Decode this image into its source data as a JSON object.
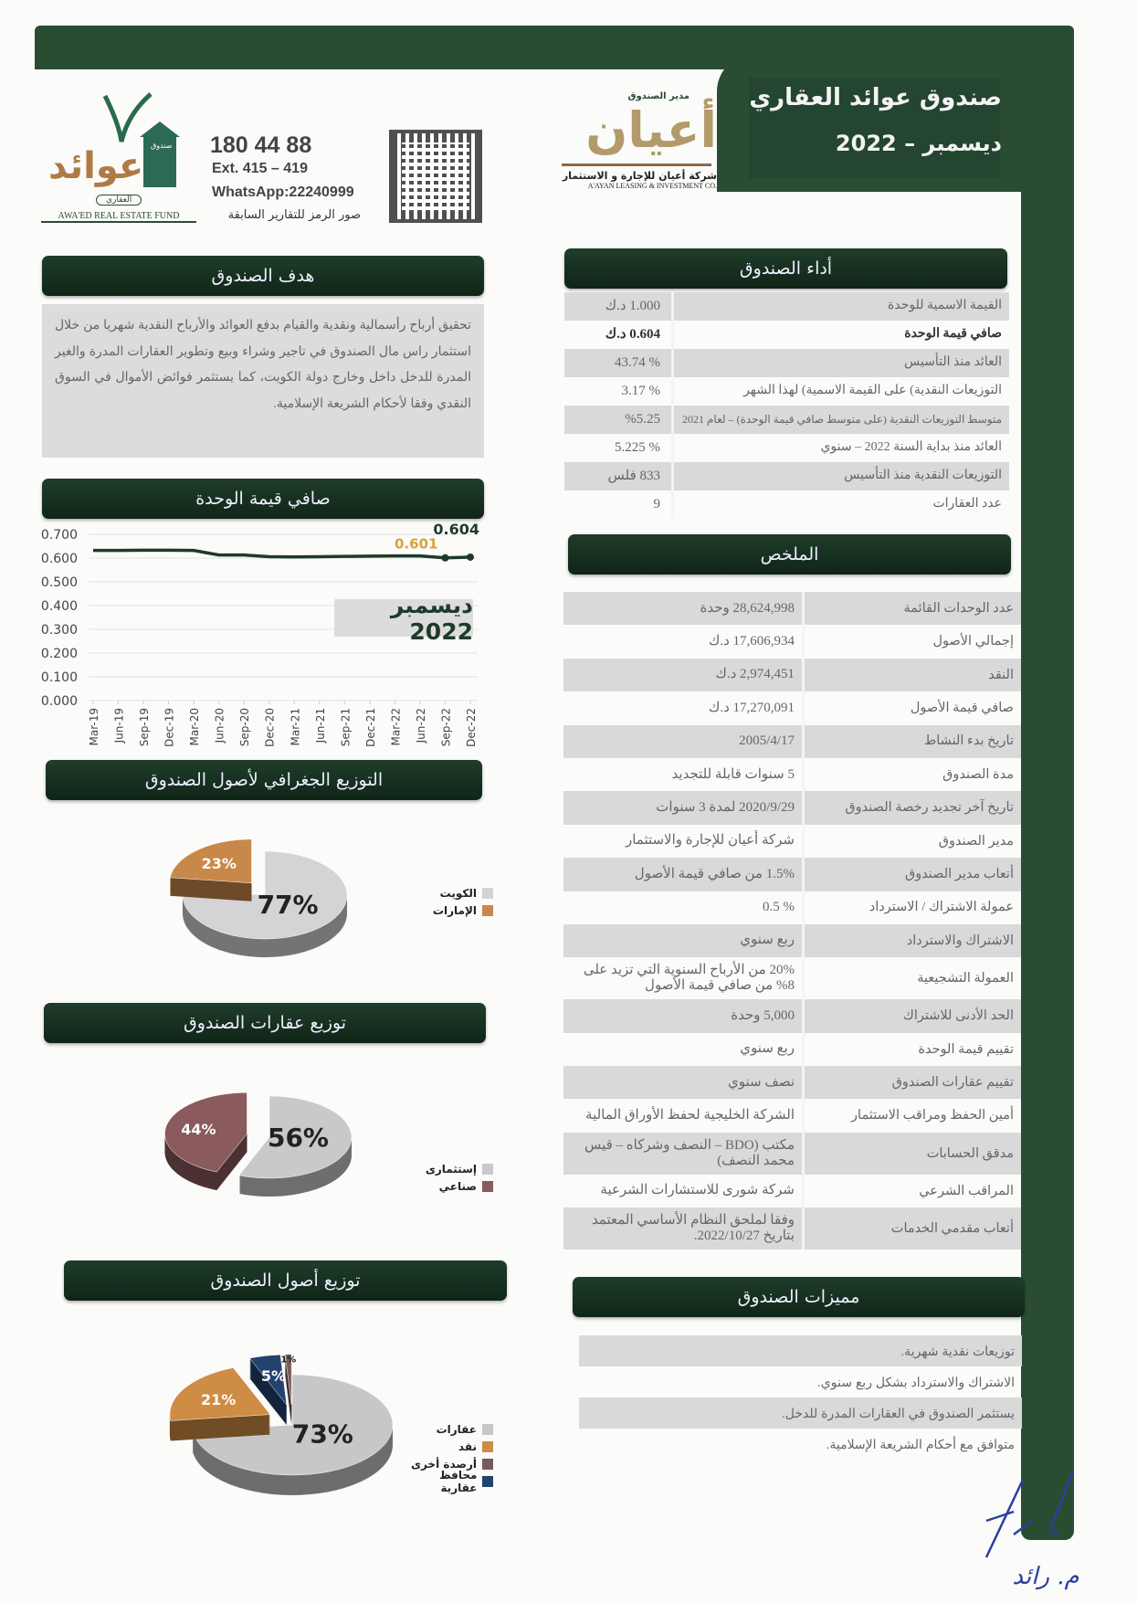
{
  "header": {
    "title": "صندوق عوائد العقاري",
    "period": "ديسمبر – 2022",
    "brand_green": "#2a4c33"
  },
  "manager_logo": {
    "caption": "مدير الصندوق",
    "name": "أعيان",
    "company_ar": "شركة أعيان للإجارة و الاستثمار",
    "company_en": "A'AYAN LEASING & INVESTMENT CO."
  },
  "fund_logo": {
    "name_ar": "عوائد",
    "sub_ar": "العقاري",
    "box_ar": "صندوق",
    "name_en": "AWA'ED REAL ESTATE FUND"
  },
  "contact": {
    "phone": "180 44 88",
    "ext": "Ext. 415 – 419",
    "whatsapp": "WhatsApp:22240999",
    "qr_caption": "صور الرمز للتقارير السابقة"
  },
  "objective": {
    "title": "هدف الصندوق",
    "text": "تحقيق أرباح رأسمالية ونقدية والقيام بدفع العوائد والأرباح النقدية شهريا من خلال استثمار راس مال الصندوق في تاجير وشراء وبيع وتطوير العقارات المدرة والغير المدرة للدخل داخل وخارج دولة الكويت، كما يستثمر فوائض الأموال في السوق النقدي وفقا لأحكام الشريعة الإسلامية."
  },
  "performance": {
    "title": "أداء الصندوق",
    "rows": [
      {
        "label": "القيمة الاسمية للوحدة",
        "value": "1.000 د.ك"
      },
      {
        "label": "صافي قيمة الوحدة",
        "value": "0.604 د.ك"
      },
      {
        "label": "العائد منذ التأسيس",
        "value": "% 43.74"
      },
      {
        "label": "التوزيعات النقدية) على القيمة الاسمية) لهذا الشهر",
        "value": "% 3.17"
      },
      {
        "label": "متوسط التوزيعات النقدية (على متوسط صافي قيمة الوحدة) – لعام 2021",
        "value": "%5.25"
      },
      {
        "label": "العائد منذ بداية السنة 2022 – سنوي",
        "value": "% 5.225"
      },
      {
        "label": "التوزيعات النقدية منذ التأسيس",
        "value": "833 فلس"
      },
      {
        "label": "عدد العقارات",
        "value": "9"
      }
    ]
  },
  "summary": {
    "title": "الملخص",
    "rows": [
      {
        "label": "عدد الوحدات القائمة",
        "value": "28,624,998 وحدة"
      },
      {
        "label": "إجمالي الأصول",
        "value": "17,606,934 د.ك"
      },
      {
        "label": "النقد",
        "value": "2,974,451 د.ك"
      },
      {
        "label": "صافي قيمة الأصول",
        "value": "17,270,091 د.ك"
      },
      {
        "label": "تاريخ بدء النشاط",
        "value": "2005/4/17"
      },
      {
        "label": "مدة الصندوق",
        "value": "5 سنوات قابلة للتجديد"
      },
      {
        "label": "تاريخ آخر تجديد رخصة الصندوق",
        "value": "2020/9/29 لمدة 3 سنوات"
      },
      {
        "label": "مدير الصندوق",
        "value": "شركة أعيان للإجارة والاستثمار"
      },
      {
        "label": "أتعاب مدير الصندوق",
        "value": "1.5% من صافي قيمة الأصول"
      },
      {
        "label": "عمولة الاشتراك / الاسترداد",
        "value": "% 0.5"
      },
      {
        "label": "الاشتراك والاسترداد",
        "value": "ربع سنوي"
      },
      {
        "label": "العمولة التشجيعية",
        "value": "20% من الأرباح السنوية التي تزيد على 8% من صافي قيمة الأصول"
      },
      {
        "label": "الحد الأدنى للاشتراك",
        "value": "5,000 وحدة"
      },
      {
        "label": "تقييم قيمة الوحدة",
        "value": "ربع سنوي"
      },
      {
        "label": "تقييم عقارات الصندوق",
        "value": "نصف سنوي"
      },
      {
        "label": "أمين الحفظ ومراقب الاستثمار",
        "value": "الشركة الخليجية لحفظ الأوراق المالية"
      },
      {
        "label": "مدقق الحسابات",
        "value": "مكتب (BDO – النصف وشركاه – قيس محمد النصف)"
      },
      {
        "label": "المراقب الشرعي",
        "value": "شركة شورى للاستشارات الشرعية"
      },
      {
        "label": "أتعاب مقدمي الخدمات",
        "value": "وفقا لملحق النظام الأساسي المعتمد بتاريخ 2022/10/27."
      }
    ]
  },
  "features": {
    "title": "مميزات الصندوق",
    "items": [
      "توزيعات نقدية شهرية.",
      "الاشتراك والاسترداد بشكل ربع سنوي.",
      "يستثمر الصندوق في العقارات المدرة للدخل.",
      "متوافق مع أحكام الشريعة الإسلامية."
    ]
  },
  "nav_section": {
    "title": "صافي قيمة الوحدة"
  },
  "geo_section": {
    "title": "التوزيع الجغرافي لأصول الصندوق"
  },
  "prop_section": {
    "title": "توزيع عقارات الصندوق"
  },
  "asset_section": {
    "title": "توزيع أصول الصندوق"
  },
  "chart_data": [
    {
      "type": "line",
      "title": "",
      "badge": "ديسمبر 2022",
      "categories": [
        "Mar-19",
        "Jun-19",
        "Sep-19",
        "Dec-19",
        "Mar-20",
        "Jun-20",
        "Sep-20",
        "Dec-20",
        "Mar-21",
        "Jun-21",
        "Sep-21",
        "Dec-21",
        "Mar-22",
        "Jun-22",
        "Sep-22",
        "Dec-22"
      ],
      "values": [
        0.632,
        0.632,
        0.633,
        0.633,
        0.632,
        0.613,
        0.613,
        0.606,
        0.605,
        0.606,
        0.607,
        0.608,
        0.609,
        0.609,
        0.601,
        0.604
      ],
      "ylim": [
        0,
        0.7
      ],
      "yticks": [
        "0.700",
        "0.600",
        "0.500",
        "0.400",
        "0.300",
        "0.200",
        "0.100",
        "0.000"
      ],
      "annotations": [
        {
          "label": "0.601",
          "color": "#d9a040"
        },
        {
          "label": "0.604",
          "color": "#1e3a2a"
        }
      ],
      "line_color": "#1e3a2a",
      "grid": true
    },
    {
      "type": "pie",
      "slices": [
        {
          "name": "الكويت",
          "value": 77,
          "label": "77%",
          "color": "#d4d4d6"
        },
        {
          "name": "الإمارات",
          "value": 23,
          "label": "23%",
          "color": "#c8884a"
        }
      ],
      "legend": "right"
    },
    {
      "type": "pie",
      "slices": [
        {
          "name": "إستثمارى",
          "value": 56,
          "label": "56%",
          "color": "#c9c9cb"
        },
        {
          "name": "صناعي",
          "value": 44,
          "label": "44%",
          "color": "#8a5a5c"
        }
      ],
      "legend": "right"
    },
    {
      "type": "pie",
      "slices": [
        {
          "name": "عقارات",
          "value": 73,
          "label": "73%",
          "color": "#c7c7c9"
        },
        {
          "name": "نقد",
          "value": 21,
          "label": "21%",
          "color": "#cf8c45"
        },
        {
          "name": "محافظ عقارية",
          "value": 5,
          "label": "5%",
          "color": "#24426e"
        },
        {
          "name": "أرصدة أخرى",
          "value": 1,
          "label": "1%",
          "color": "#7a5a5a"
        }
      ],
      "legend_order": [
        "عقارات",
        "نقد",
        "أرصدة أخرى",
        "محافظ عقارية"
      ],
      "legend": "right"
    }
  ],
  "signature": {
    "text": "م. رائد"
  }
}
